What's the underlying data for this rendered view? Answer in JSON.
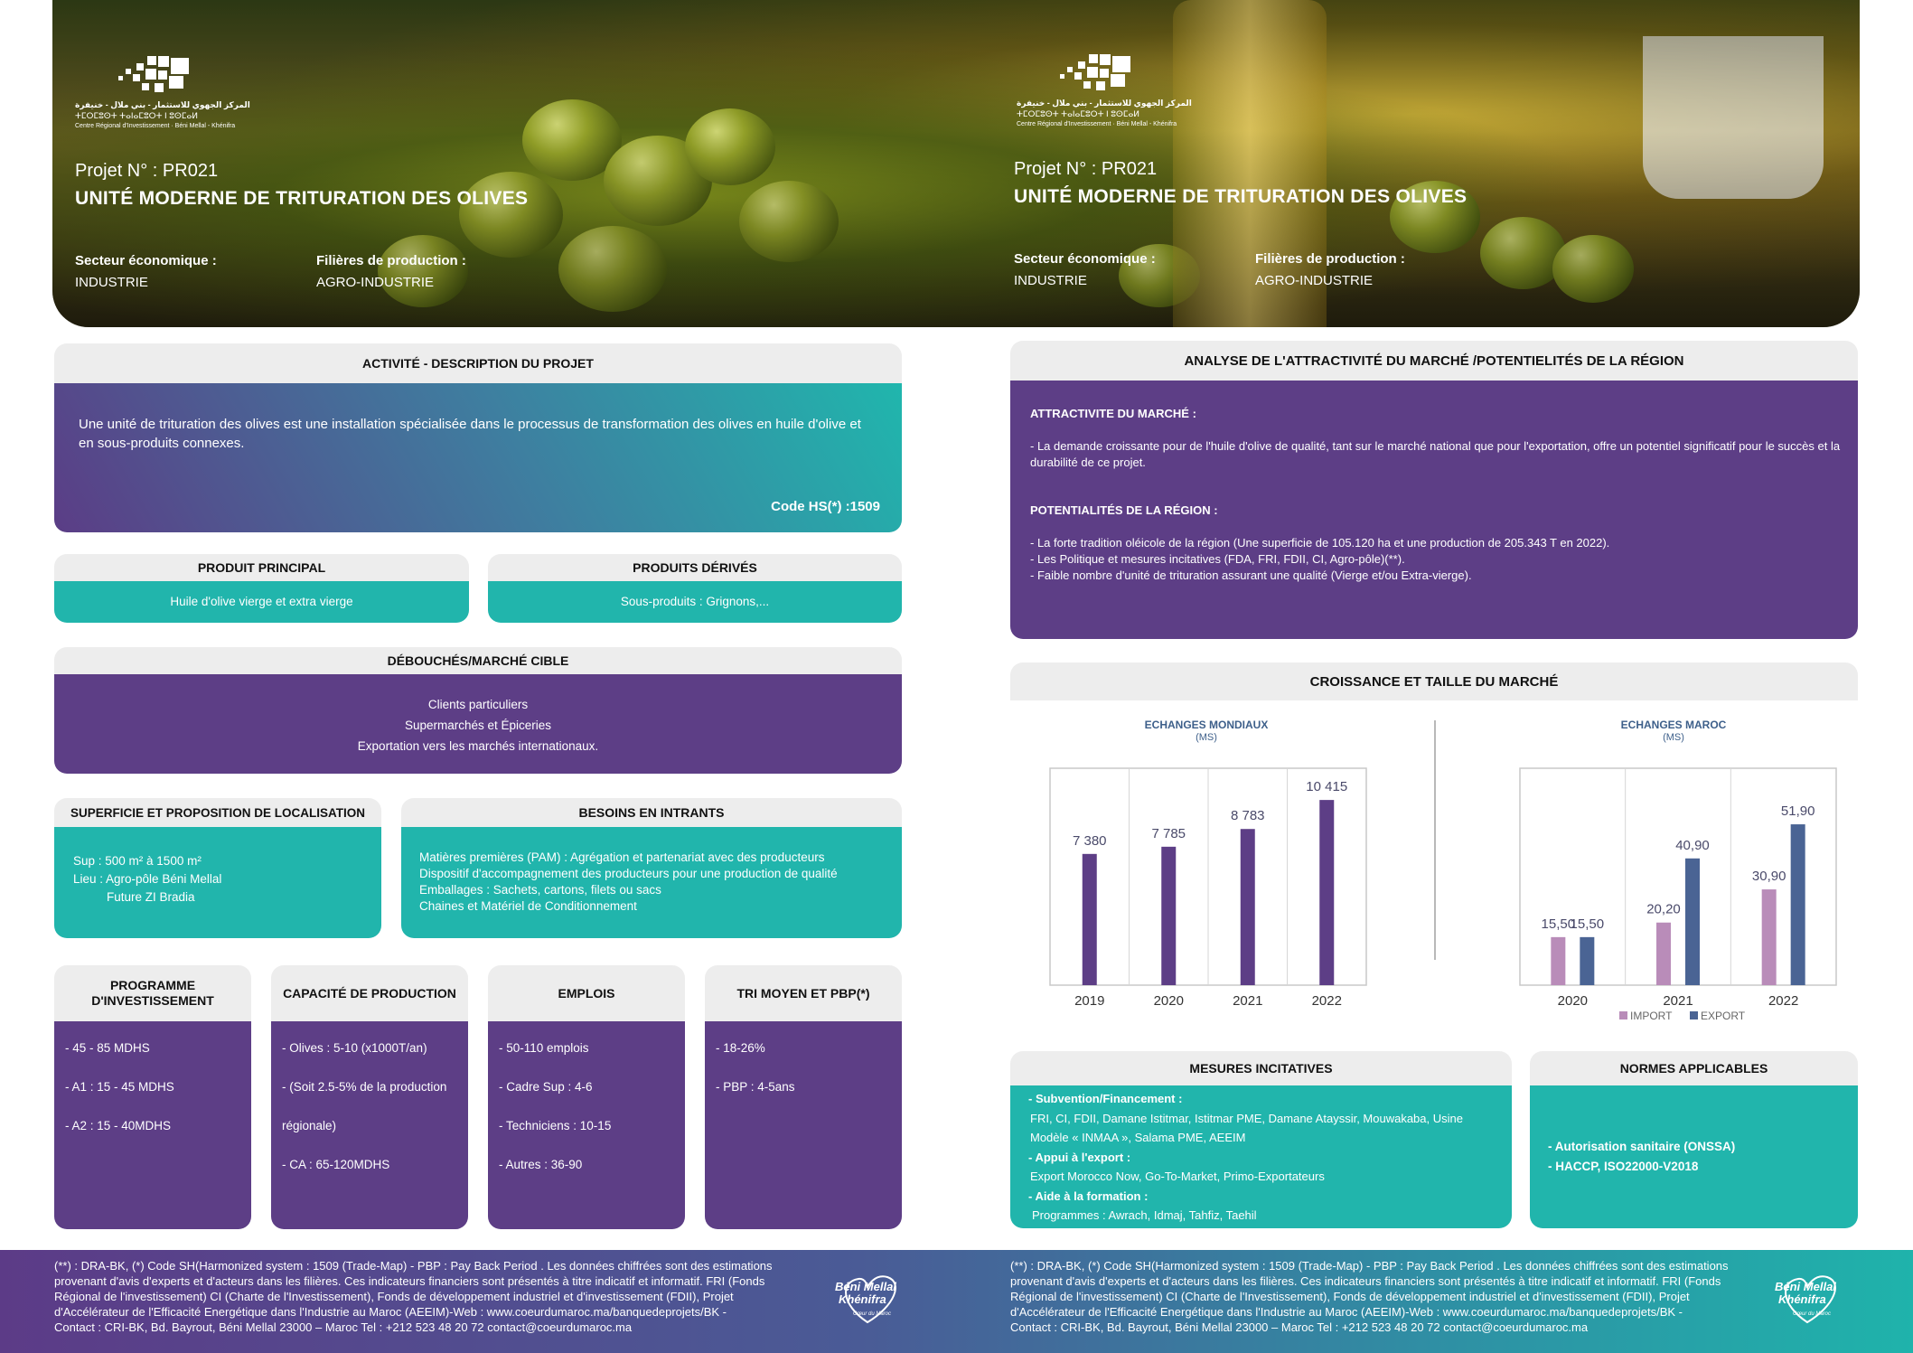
{
  "header": {
    "logo_ar_line1": "المركز الجهوي للاستثمار - بني ملال - خنيفرة",
    "logo_tifinagh": "ⵜⵎⵔⵎⵓⵙⵜ ⵜⴰⵏⴰⵎⵓⵔⵜ ⵏ ⵓⵙⵎⴰⵍ",
    "logo_fr": "Centre Régional d'Investissement · Béni Mellal - Khénifra",
    "projet_no": "Projet N° : PR021",
    "title": "UNITÉ MODERNE DE TRITURATION DES OLIVES",
    "secteur_label": "Secteur économique :",
    "secteur_value": "INDUSTRIE",
    "filieres_label": "Filières de production :",
    "filieres_value": "AGRO-INDUSTRIE"
  },
  "activite": {
    "heading": "ACTIVITÉ - DESCRIPTION DU PROJET",
    "description": "Une unité de trituration des olives est une installation spécialisée dans le processus de transformation des olives en huile d'olive et en sous-produits connexes.",
    "code_hs": "Code HS(*) :1509"
  },
  "produit_principal": {
    "heading": "PRODUIT PRINCIPAL",
    "value": "Huile d'olive vierge et extra vierge"
  },
  "produits_derives": {
    "heading": "PRODUITS DÉRIVÉS",
    "value": "Sous-produits : Grignons,..."
  },
  "debouches": {
    "heading": "DÉBOUCHÉS/MARCHÉ CIBLE",
    "items": [
      "Clients particuliers",
      "Supermarchés et Épiceries",
      "Exportation vers les marchés internationaux."
    ]
  },
  "superficie": {
    "heading": "SUPERFICIE ET PROPOSITION DE LOCALISATION",
    "lines": [
      "Sup : 500 m² à 1500 m²",
      "Lieu : Agro-pôle Béni Mellal",
      "Future ZI Bradia"
    ]
  },
  "besoins": {
    "heading": "BESOINS EN INTRANTS",
    "lines": [
      "Matières premières (PAM) : Agrégation et partenariat avec des producteurs",
      "Dispositif d'accompagnement des producteurs pour une production de qualité",
      "Emballages : Sachets, cartons, filets ou sacs",
      "Chaines et Matériel de Conditionnement"
    ]
  },
  "programme": {
    "heading": "PROGRAMME D'INVESTISSEMENT",
    "lines": [
      "- 45 - 85 MDHS",
      "- A1 : 15 - 45 MDHS",
      "- A2 : 15 - 40MDHS"
    ]
  },
  "capacite": {
    "heading": "CAPACITÉ DE PRODUCTION",
    "lines": [
      "- Olives : 5-10 (x1000T/an)",
      "- (Soit 2.5-5% de la production",
      "régionale)",
      "- CA : 65-120MDHS"
    ]
  },
  "emplois": {
    "heading": "EMPLOIS",
    "lines": [
      "- 50-110 emplois",
      "- Cadre Sup : 4-6",
      "- Techniciens : 10-15",
      "- Autres : 36-90"
    ]
  },
  "tri": {
    "heading": "TRI MOYEN ET PBP(*)",
    "lines": [
      "- 18-26%",
      "- PBP : 4-5ans"
    ]
  },
  "analyse": {
    "heading": "ANALYSE DE L'ATTRACTIVITÉ DU MARCHÉ /POTENTIELITÉS DE LA RÉGION",
    "attr_label": "ATTRACTIVITE DU MARCHÉ :",
    "attr_text": "- La demande croissante pour de l'huile d'olive de qualité, tant sur le marché national que pour l'exportation, offre un potentiel significatif pour le succès et la durabilité de ce projet.",
    "pot_label": "POTENTIALITÉS DE LA RÉGION :",
    "pot_items": [
      "- La forte tradition oléicole de la région (Une superficie de 105.120 ha et une production de 205.343 T en 2022).",
      "- Les Politique et mesures incitatives (FDA, FRI, FDII, CI, Agro-pôle)(**).",
      "- Faible nombre d'unité de trituration assurant une qualité (Vierge et/ou Extra-vierge)."
    ]
  },
  "croissance": {
    "heading": "CROISSANCE ET TAILLE DU MARCHÉ"
  },
  "chart_data": [
    {
      "type": "bar",
      "title": "ECHANGES MONDIAUX",
      "subtitle": "(MS)",
      "categories": [
        "2019",
        "2020",
        "2021",
        "2022"
      ],
      "series": [
        {
          "values": [
            7380,
            7785,
            8783,
            10415
          ],
          "labels": [
            "7 380",
            "7 785",
            "8 783",
            "10 415"
          ],
          "color": "#5d3e86"
        }
      ],
      "ylim": [
        0,
        12200
      ]
    },
    {
      "type": "bar",
      "title": "ECHANGES MAROC",
      "subtitle": "(MS)",
      "categories": [
        "2020",
        "2021",
        "2022"
      ],
      "series": [
        {
          "name": "IMPORT",
          "values": [
            15.5,
            20.2,
            30.9
          ],
          "labels": [
            "15,50",
            "20,20",
            "30,90"
          ],
          "color": "#b98cb9"
        },
        {
          "name": "EXPORT",
          "values": [
            15.5,
            40.9,
            51.9
          ],
          "labels": [
            "15,50",
            "40,90",
            "51,90"
          ],
          "color": "#4a6494"
        }
      ],
      "legend_position": "bottom",
      "export_offsets_note": "",
      "ylim": [
        0,
        70
      ]
    }
  ],
  "mesures": {
    "heading": "MESURES INCITATIVES",
    "sub_label": "- Subvention/Financement :",
    "sub_text1": "FRI, CI, FDII, Damane Istitmar, Istitmar PME, Damane Atayssir, Mouwakaba, Usine",
    "sub_text2": "Modèle « INMAA », Salama PME, AEEIM",
    "export_label": "- Appui à l'export :",
    "export_text": "Export Morocco Now, Go-To-Market, Primo-Exportateurs",
    "form_label": "- Aide à la formation :",
    "form_text": "Programmes : Awrach, Idmaj, Tahfiz, Taehil"
  },
  "normes": {
    "heading": "NORMES APPLICABLES",
    "lines": [
      "- Autorisation sanitaire (ONSSA)",
      "- HACCP, ISO22000-V2018"
    ]
  },
  "footer": {
    "line1": "(**) : DRA-BK, (*) Code SH(Harmonized system : 1509 (Trade-Map) - PBP : Pay Back Period . Les données chiffrées sont des estimations",
    "line2": "provenant d'avis d'experts et d'acteurs dans les filières. Ces indicateurs financiers sont présentés à titre indicatif et informatif. FRI (Fonds",
    "line3": "Régional de l'investissement) CI (Charte de l'Investissement), Fonds de développement industriel et d'investissement (FDII), Projet",
    "line4": "d'Accélérateur de l'Efficacité Energétique dans l'Industrie au Maroc (AEEIM)-Web : www.coeurdumaroc.ma/banquedeprojets/BK -",
    "line5": "Contact : CRI-BK, Bd. Bayrout, Béni Mellal 23000 – Maroc Tel : +212 523 48 20 72 contact@coeurdumaroc.ma",
    "brand_line1": "Béni Mellal",
    "brand_line2": "Khénifra",
    "brand_line3": "Cœur du Maroc"
  }
}
